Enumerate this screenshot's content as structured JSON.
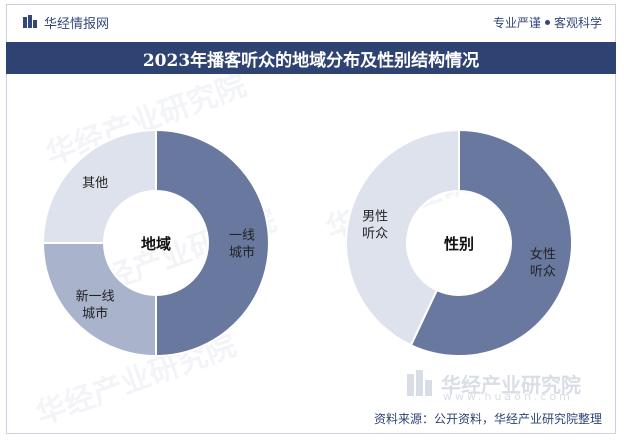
{
  "header": {
    "brand": "华经情报网",
    "tagline_left": "专业严谨",
    "tagline_right": "客观科学"
  },
  "title": "2023年播客听众的地域分布及性别结构情况",
  "footer": {
    "source": "资料来源：公开资料，华经产业研究院整理"
  },
  "watermark": {
    "brand": "华经产业研究院",
    "url": "www.huaon.com"
  },
  "colors": {
    "dark": "#68789e",
    "mid": "#a9b4cc",
    "light": "#dde2ec",
    "title_bg": "#2f4373"
  },
  "chart_data": [
    {
      "type": "pie",
      "center_label": "地域",
      "slices": [
        {
          "label": "一线城市",
          "label_lines": [
            "一线",
            "城市"
          ],
          "value": 50,
          "color": "#68789e"
        },
        {
          "label": "新一线城市",
          "label_lines": [
            "新一线",
            "城市"
          ],
          "value": 25,
          "color": "#a9b4cc"
        },
        {
          "label": "其他",
          "label_lines": [
            "其他"
          ],
          "value": 25,
          "color": "#dde2ec"
        }
      ]
    },
    {
      "type": "pie",
      "center_label": "性别",
      "slices": [
        {
          "label": "女性听众",
          "label_lines": [
            "女性",
            "听众"
          ],
          "value": 57,
          "color": "#68789e"
        },
        {
          "label": "男性听众",
          "label_lines": [
            "男性",
            "听众"
          ],
          "value": 43,
          "color": "#dde2ec"
        }
      ]
    }
  ]
}
